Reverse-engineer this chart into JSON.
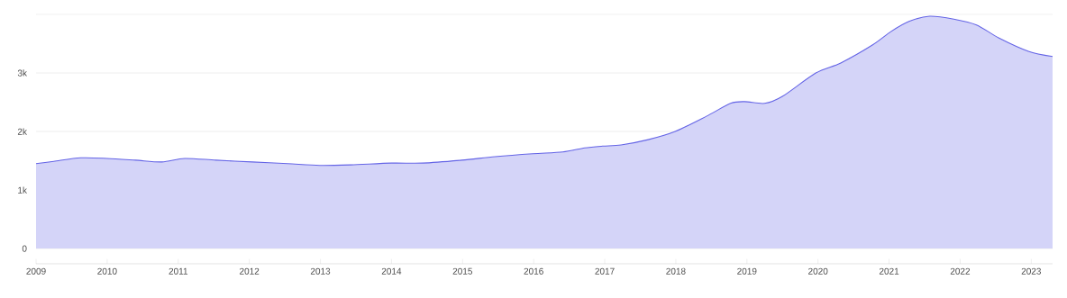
{
  "chart_data": {
    "type": "area",
    "color": "#6464e6",
    "x": [
      2009.0,
      2009.25,
      2009.63,
      2010.0,
      2010.4,
      2010.77,
      2011.09,
      2011.53,
      2012.04,
      2012.54,
      2012.99,
      2013.43,
      2014.0,
      2014.44,
      2014.99,
      2015.46,
      2015.99,
      2016.41,
      2016.72,
      2016.97,
      2017.23,
      2017.61,
      2017.99,
      2018.43,
      2018.77,
      2018.97,
      2019.25,
      2019.5,
      2019.97,
      2020.32,
      2020.77,
      2021.03,
      2021.28,
      2021.57,
      2021.91,
      2022.23,
      2022.54,
      2022.96,
      2023.3
    ],
    "values": [
      1450,
      1490,
      1550,
      1540,
      1510,
      1480,
      1540,
      1510,
      1480,
      1450,
      1420,
      1430,
      1460,
      1460,
      1510,
      1570,
      1620,
      1650,
      1720,
      1750,
      1770,
      1860,
      2000,
      2260,
      2480,
      2510,
      2480,
      2600,
      3000,
      3170,
      3480,
      3710,
      3880,
      3970,
      3920,
      3820,
      3600,
      3370,
      3280
    ],
    "xlim": [
      2009,
      2023.3
    ],
    "ylim": [
      -260,
      4000
    ],
    "xticks": [
      2009,
      2010,
      2011,
      2012,
      2013,
      2014,
      2015,
      2016,
      2017,
      2018,
      2019,
      2020,
      2021,
      2022,
      2023
    ],
    "yticks": [
      0,
      {
        "value": 1000,
        "label": "1k"
      },
      {
        "value": 2000,
        "label": "2k"
      },
      {
        "value": 3000,
        "label": "3k"
      },
      {
        "value": 4000,
        "label": null
      }
    ],
    "grid": "y",
    "marker": "none"
  }
}
